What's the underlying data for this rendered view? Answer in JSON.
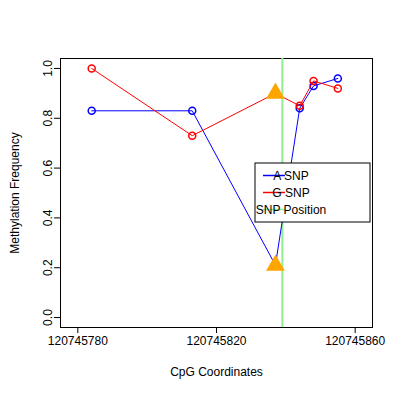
{
  "chart_data": {
    "type": "line",
    "x_label": "CpG Coordinates",
    "y_label": "Methylation Frequency",
    "xlim": [
      120745775,
      120745865
    ],
    "xticks": [
      120745780,
      120745820,
      120745860
    ],
    "ylim": [
      -0.04,
      1.04
    ],
    "yticks": [
      {
        "value": 0,
        "label": "0.0"
      },
      0.2,
      0.4,
      0.6,
      0.8,
      {
        "value": 1,
        "label": "1.0"
      }
    ],
    "x": [
      120745784,
      120745813,
      120745837,
      120745844,
      120745848,
      120745855
    ],
    "series": [
      {
        "name": "A SNP",
        "color": "#0000ff",
        "marker": "circle",
        "values": [
          0.83,
          0.83,
          0.21,
          0.84,
          0.93,
          0.96
        ]
      },
      {
        "name": "G SNP",
        "color": "#ff0000",
        "marker": "circle",
        "values": [
          1.0,
          0.73,
          0.9,
          0.85,
          0.95,
          0.92
        ]
      }
    ],
    "highlight": {
      "x": 120745837,
      "color": "#ffa500",
      "marker": "triangle"
    },
    "vlines": [
      {
        "name": "SNP Position",
        "x": 120745839,
        "color": "#90ee90"
      }
    ],
    "legend": "right"
  }
}
